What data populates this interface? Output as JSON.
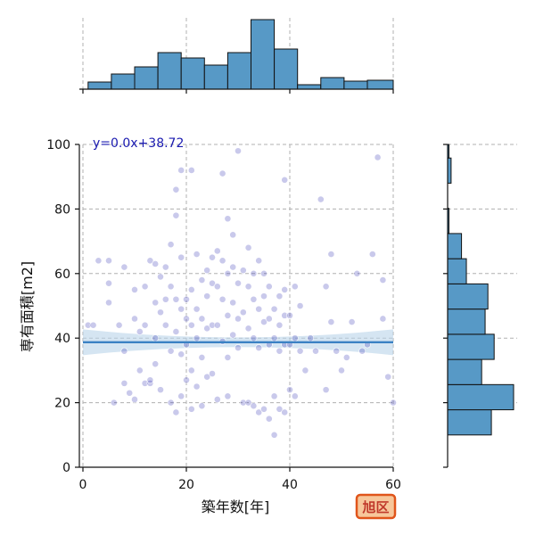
{
  "colors": {
    "point": "#3d3db8",
    "hist_fill": "#5799c6",
    "reg_line": "#3b82c4",
    "ci_band": "#b9d3ea",
    "annotation": "#1a1ab0",
    "badge_border": "#e0551b",
    "badge_fill": "#f7c79b",
    "badge_text": "#c0392b"
  },
  "badge": {
    "label": "旭区"
  },
  "chart_data": {
    "type": "scatter",
    "title": "",
    "xlabel": "築年数[年]",
    "ylabel": "専有面積[m2]",
    "xlim": [
      0,
      60
    ],
    "ylim": [
      0,
      100
    ],
    "xticks": [
      "0",
      "20",
      "40",
      "60"
    ],
    "yticks": [
      "0",
      "20",
      "40",
      "60",
      "80",
      "100"
    ],
    "grid": true,
    "annotation": "y=0.0x+38.72",
    "regression": {
      "slope": 0.0,
      "intercept": 38.72,
      "ci_halfwidth_ends": 4,
      "ci_halfwidth_mid": 1.5
    },
    "x_hist": {
      "bin_edges": [
        1,
        5.5,
        10,
        14.5,
        19,
        23.5,
        28,
        32.5,
        37,
        41.5,
        46,
        50.5,
        55,
        60
      ],
      "counts": [
        8,
        17,
        25,
        41,
        35,
        27,
        41,
        78,
        45,
        5,
        13,
        9,
        10
      ]
    },
    "y_hist": {
      "bin_edges": [
        10,
        17.8,
        25.6,
        33.4,
        41.2,
        49,
        56.8,
        64.6,
        72.4,
        80.2,
        88,
        95.8,
        100
      ],
      "counts": [
        63,
        95,
        49,
        67,
        54,
        58,
        27,
        20,
        1,
        0,
        5,
        1
      ]
    },
    "points": [
      [
        1,
        44
      ],
      [
        2,
        44
      ],
      [
        3,
        64
      ],
      [
        5,
        57
      ],
      [
        5,
        51
      ],
      [
        5,
        64
      ],
      [
        6,
        20
      ],
      [
        7,
        44
      ],
      [
        8,
        62
      ],
      [
        8,
        36
      ],
      [
        8,
        26
      ],
      [
        9,
        23
      ],
      [
        10,
        21
      ],
      [
        10,
        55
      ],
      [
        10,
        46
      ],
      [
        11,
        42
      ],
      [
        11,
        30
      ],
      [
        12,
        56
      ],
      [
        12,
        44
      ],
      [
        12,
        26
      ],
      [
        13,
        26
      ],
      [
        13,
        64
      ],
      [
        13,
        27
      ],
      [
        14,
        63
      ],
      [
        14,
        51
      ],
      [
        14,
        40
      ],
      [
        14,
        32
      ],
      [
        15,
        24
      ],
      [
        15,
        59
      ],
      [
        15,
        48
      ],
      [
        16,
        62
      ],
      [
        16,
        52
      ],
      [
        16,
        44
      ],
      [
        17,
        69
      ],
      [
        17,
        56
      ],
      [
        17,
        20
      ],
      [
        17,
        36
      ],
      [
        18,
        78
      ],
      [
        18,
        86
      ],
      [
        18,
        52
      ],
      [
        18,
        42
      ],
      [
        18,
        17
      ],
      [
        19,
        92
      ],
      [
        19,
        65
      ],
      [
        19,
        49
      ],
      [
        19,
        35
      ],
      [
        19,
        22
      ],
      [
        20,
        52
      ],
      [
        20,
        46
      ],
      [
        20,
        38
      ],
      [
        20,
        27
      ],
      [
        21,
        92
      ],
      [
        21,
        55
      ],
      [
        21,
        44
      ],
      [
        21,
        30
      ],
      [
        21,
        18
      ],
      [
        22,
        66
      ],
      [
        22,
        49
      ],
      [
        22,
        40
      ],
      [
        22,
        25
      ],
      [
        23,
        58
      ],
      [
        23,
        46
      ],
      [
        23,
        34
      ],
      [
        23,
        19
      ],
      [
        24,
        61
      ],
      [
        24,
        53
      ],
      [
        24,
        43
      ],
      [
        24,
        28
      ],
      [
        25,
        65
      ],
      [
        25,
        57
      ],
      [
        25,
        44
      ],
      [
        25,
        29
      ],
      [
        26,
        67
      ],
      [
        26,
        56
      ],
      [
        26,
        44
      ],
      [
        26,
        21
      ],
      [
        27,
        91
      ],
      [
        27,
        64
      ],
      [
        27,
        52
      ],
      [
        27,
        39
      ],
      [
        28,
        77
      ],
      [
        28,
        60
      ],
      [
        28,
        47
      ],
      [
        28,
        34
      ],
      [
        28,
        22
      ],
      [
        29,
        72
      ],
      [
        29,
        62
      ],
      [
        29,
        51
      ],
      [
        29,
        41
      ],
      [
        30,
        98
      ],
      [
        30,
        57
      ],
      [
        30,
        46
      ],
      [
        30,
        37
      ],
      [
        31,
        61
      ],
      [
        31,
        48
      ],
      [
        31,
        20
      ],
      [
        32,
        68
      ],
      [
        32,
        56
      ],
      [
        32,
        43
      ],
      [
        32,
        20
      ],
      [
        33,
        60
      ],
      [
        33,
        52
      ],
      [
        33,
        40
      ],
      [
        33,
        19
      ],
      [
        34,
        64
      ],
      [
        34,
        49
      ],
      [
        34,
        37
      ],
      [
        34,
        17
      ],
      [
        35,
        60
      ],
      [
        35,
        53
      ],
      [
        35,
        45
      ],
      [
        35,
        18
      ],
      [
        36,
        56
      ],
      [
        36,
        46
      ],
      [
        36,
        38
      ],
      [
        36,
        15
      ],
      [
        37,
        49
      ],
      [
        37,
        40
      ],
      [
        37,
        22
      ],
      [
        37,
        10
      ],
      [
        38,
        53
      ],
      [
        38,
        44
      ],
      [
        38,
        36
      ],
      [
        38,
        18
      ],
      [
        39,
        89
      ],
      [
        39,
        55
      ],
      [
        39,
        47
      ],
      [
        39,
        38
      ],
      [
        39,
        17
      ],
      [
        40,
        47
      ],
      [
        40,
        38
      ],
      [
        40,
        24
      ],
      [
        41,
        56
      ],
      [
        41,
        40
      ],
      [
        41,
        22
      ],
      [
        42,
        50
      ],
      [
        42,
        36
      ],
      [
        43,
        30
      ],
      [
        44,
        40
      ],
      [
        45,
        36
      ],
      [
        46,
        83
      ],
      [
        47,
        24
      ],
      [
        47,
        56
      ],
      [
        48,
        45
      ],
      [
        48,
        66
      ],
      [
        49,
        36
      ],
      [
        50,
        30
      ],
      [
        51,
        34
      ],
      [
        52,
        45
      ],
      [
        53,
        60
      ],
      [
        54,
        36
      ],
      [
        55,
        38
      ],
      [
        56,
        66
      ],
      [
        57,
        96
      ],
      [
        58,
        58
      ],
      [
        58,
        46
      ],
      [
        59,
        28
      ],
      [
        60,
        20
      ]
    ]
  }
}
